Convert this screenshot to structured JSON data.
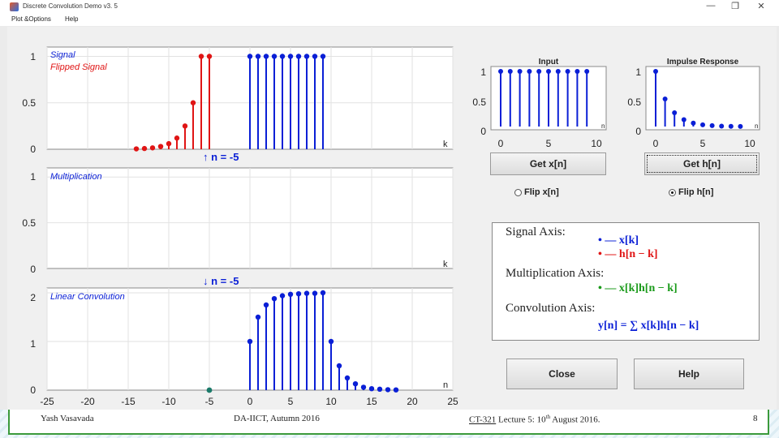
{
  "window": {
    "title": "Discrete Convolution Demo v3. 5",
    "menu": [
      "Plot &Options",
      "Help"
    ],
    "controls": {
      "minimize": "—",
      "restore": "❐",
      "close": "✕"
    }
  },
  "left_plots": {
    "xticks": [
      "-25",
      "-20",
      "-15",
      "-10",
      "-5",
      "0",
      "5",
      "10",
      "15",
      "20",
      "25"
    ],
    "signal": {
      "legend": [
        "Signal",
        "Flipped Signal"
      ],
      "yticks": [
        "1",
        "0.5",
        "0"
      ],
      "axis_var": "k",
      "indicator": "↑ n = -5",
      "ylim": [
        0,
        1.1
      ],
      "x_signal": [
        0,
        1,
        2,
        3,
        4,
        5,
        6,
        7,
        8,
        9
      ],
      "y_signal": [
        1,
        1,
        1,
        1,
        1,
        1,
        1,
        1,
        1,
        1
      ],
      "x_flipped": [
        -14,
        -13,
        -12,
        -11,
        -10,
        -9,
        -8,
        -7,
        -6,
        -5
      ],
      "y_flipped": [
        0.004,
        0.008,
        0.015,
        0.03,
        0.06,
        0.12,
        0.25,
        0.5,
        1.0,
        1.0
      ]
    },
    "multiplication": {
      "legend": [
        "Multiplication"
      ],
      "yticks": [
        "1",
        "0.5",
        "0"
      ],
      "axis_var": "k",
      "indicator": "↓ n = -5",
      "ylim": [
        0,
        1.1
      ]
    },
    "convolution": {
      "legend": [
        "Linear Convolution"
      ],
      "yticks": [
        "2",
        "1",
        "0"
      ],
      "axis_var": "n",
      "ylim": [
        0,
        2.1
      ],
      "x": [
        0,
        1,
        2,
        3,
        4,
        5,
        6,
        7,
        8,
        9,
        10,
        11,
        12,
        13,
        14,
        15,
        16,
        17,
        18
      ],
      "y": [
        1,
        1.5,
        1.75,
        1.88,
        1.94,
        1.97,
        1.98,
        1.99,
        1.99,
        2.0,
        1.0,
        0.5,
        0.25,
        0.13,
        0.06,
        0.03,
        0.02,
        0.01,
        0.005
      ],
      "marker_x": -5
    }
  },
  "input_plot": {
    "title": "Input",
    "yticks": [
      "1",
      "0.5",
      "0"
    ],
    "xticks": [
      "0",
      "5",
      "10"
    ],
    "axis_var": "n",
    "x": [
      0,
      1,
      2,
      3,
      4,
      5,
      6,
      7,
      8,
      9
    ],
    "y": [
      1,
      1,
      1,
      1,
      1,
      1,
      1,
      1,
      1,
      1
    ]
  },
  "impulse_plot": {
    "title": "Impulse Response",
    "yticks": [
      "1",
      "0.5",
      "0"
    ],
    "xticks": [
      "0",
      "5",
      "10"
    ],
    "axis_var": "n",
    "x": [
      0,
      1,
      2,
      3,
      4,
      5,
      6,
      7,
      8,
      9
    ],
    "y": [
      1,
      0.5,
      0.25,
      0.125,
      0.0625,
      0.031,
      0.016,
      0.008,
      0.004,
      0.002
    ]
  },
  "buttons": {
    "get_x": "Get x[n]",
    "get_h": "Get h[n]",
    "close": "Close",
    "help": "Help"
  },
  "radios": {
    "flip_x": "Flip x[n]",
    "flip_h": "Flip h[n]"
  },
  "legend_panel": {
    "signal_axis": "Signal Axis:",
    "signal_x": "• — x[k]",
    "signal_h": "• — h[n − k]",
    "mult_axis": "Multiplication Axis:",
    "mult_eq": "• — x[k]h[n − k]",
    "conv_axis": "Convolution Axis:",
    "conv_eq": "y[n] = ∑ x[k]h[n − k]"
  },
  "colors": {
    "blue": "#0a1fd6",
    "red": "#e01515",
    "green": "#1a9a1a"
  },
  "footer": {
    "author": "Yash Vasavada",
    "course": "DA-IICT,  Autumn 2016",
    "code": "CT-321",
    "lecture": "Lecture 5:  10",
    "lecture_sup": "th",
    "lecture_end": " August 2016.",
    "page": "8"
  }
}
